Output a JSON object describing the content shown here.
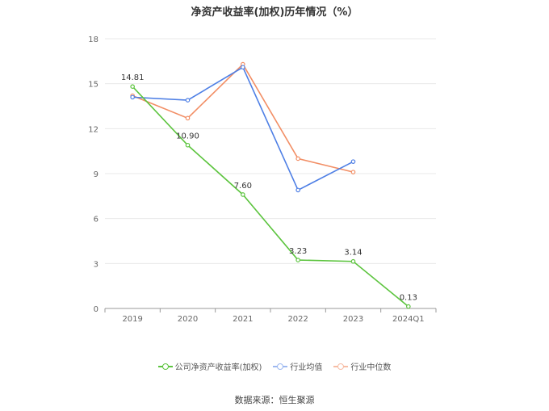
{
  "chart_data": {
    "type": "line",
    "title": "净资产收益率(加权)历年情况（%）",
    "categories": [
      "2019",
      "2020",
      "2021",
      "2022",
      "2023",
      "2024Q1"
    ],
    "yticks": [
      "0",
      "3",
      "6",
      "9",
      "12",
      "15",
      "18"
    ],
    "ylim": [
      0,
      18
    ],
    "grid": true,
    "legend_position": "bottom",
    "series": [
      {
        "name": "公司净资产收益率(加权)",
        "color": "#5cc43e",
        "values": [
          14.81,
          10.9,
          7.6,
          3.23,
          3.14,
          0.13
        ],
        "labels": [
          "14.81",
          "10.90",
          "7.60",
          "3.23",
          "3.14",
          "0.13"
        ]
      },
      {
        "name": "行业均值",
        "color": "#4e7fe5",
        "values": [
          14.1,
          13.9,
          16.1,
          7.9,
          9.8,
          null
        ]
      },
      {
        "name": "行业中位数",
        "color": "#f28e65",
        "values": [
          14.2,
          12.7,
          16.3,
          10.0,
          9.1,
          null
        ]
      }
    ]
  },
  "source": "数据来源：恒生聚源"
}
